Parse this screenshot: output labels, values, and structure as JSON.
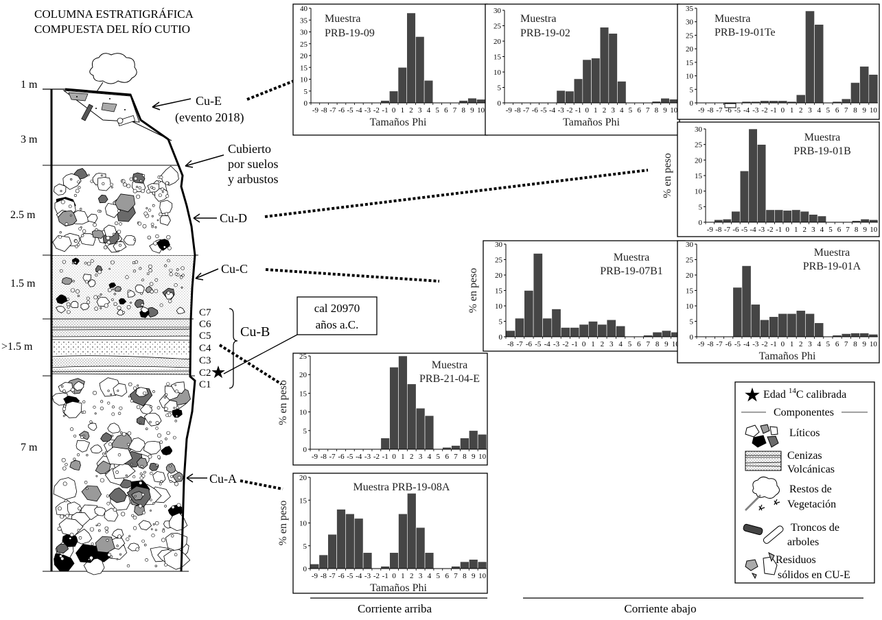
{
  "title_lines": [
    "COLUMNA ESTRATIGRÁFICA",
    "COMPUESTA DEL RÍO CUTIO"
  ],
  "thickness_labels": [
    "1 m",
    "3 m",
    "2.5 m",
    "1.5 m",
    ">1.5 m",
    "7 m"
  ],
  "unit_labels": {
    "cu_e": [
      "Cu-E",
      "(evento 2018)"
    ],
    "covered": [
      "Cubierto",
      "por suelos",
      "y arbustos"
    ],
    "cu_d": "Cu-D",
    "cu_c": "Cu-C",
    "cu_b": "Cu-B",
    "cu_a": "Cu-A",
    "c_layers": [
      "C7",
      "C6",
      "C5",
      "C4",
      "C3",
      "C2",
      "C1"
    ]
  },
  "date_box": [
    "cal 20970",
    "años a.C."
  ],
  "bottom_labels": {
    "upstream": "Corriente arriba",
    "downstream": "Corriente abajo"
  },
  "legend": {
    "star_prefix": "Edad ",
    "star_sup": "14",
    "star_suffix": "C calibrada",
    "components_title": "Componentes",
    "items": [
      [
        "Líticos"
      ],
      [
        "Cenizas",
        "Volcánicas"
      ],
      [
        "Restos de",
        "Vegetación"
      ],
      [
        "Troncos de",
        "arboles"
      ],
      [
        "Residuos",
        "sólidos en CU-E"
      ]
    ]
  },
  "colors": {
    "bar": "#454545",
    "axis": "#000000",
    "gray_clast": "#9a9a9a",
    "dark_clast": "#6a6a6a"
  },
  "chart_data": [
    {
      "type": "bar",
      "sample_label": [
        "Muestra",
        "PRB-19-09"
      ],
      "x": [
        -9,
        -8,
        -7,
        -6,
        -5,
        -4,
        -3,
        -2,
        -1,
        0,
        1,
        2,
        3,
        4,
        5,
        6,
        7,
        8,
        9,
        10
      ],
      "values": [
        0,
        0,
        0,
        0,
        0,
        0,
        0,
        0,
        1,
        5,
        15,
        38,
        28,
        9.5,
        0,
        0,
        0,
        1,
        2,
        1.5
      ],
      "ylim": [
        0,
        40
      ],
      "yticks": [
        0,
        5,
        10,
        15,
        20,
        25,
        30,
        35,
        40
      ],
      "xlabel": "Tamaños Phi",
      "ylabel": ""
    },
    {
      "type": "bar",
      "sample_label": [
        "Muestra",
        "PRB-19-02"
      ],
      "x": [
        -9,
        -8,
        -7,
        -6,
        -5,
        -4,
        -3,
        -2,
        -1,
        0,
        1,
        2,
        3,
        4,
        5,
        6,
        7,
        8,
        9,
        10
      ],
      "values": [
        0,
        0,
        0,
        0,
        0,
        0,
        4,
        3.8,
        7.8,
        14,
        14.5,
        24.5,
        22.5,
        7,
        0,
        0,
        0,
        0.5,
        1.5,
        1.2
      ],
      "ylim": [
        0,
        30
      ],
      "yticks": [
        0,
        5,
        10,
        15,
        20,
        25,
        30
      ],
      "xlabel": "Tamaños Phi",
      "ylabel": ""
    },
    {
      "type": "bar",
      "sample_label": [
        "Muestra",
        "PRB-19-01Te"
      ],
      "x": [
        -9,
        -8,
        -7,
        -6,
        -5,
        -4,
        -3,
        -2,
        -1,
        0,
        1,
        2,
        3,
        4,
        5,
        6,
        7,
        8,
        9,
        10
      ],
      "values": [
        0,
        0,
        0,
        0,
        0.2,
        0.5,
        0.5,
        0.8,
        0.8,
        0.8,
        0.5,
        3,
        34,
        29,
        0,
        0.5,
        1.5,
        7.5,
        13.5,
        10.5
      ],
      "ylim": [
        0,
        35
      ],
      "yticks": [
        0,
        5,
        10,
        15,
        20,
        25,
        30,
        35
      ],
      "xlabel": "",
      "ylabel": ""
    },
    {
      "type": "bar",
      "sample_label": [
        "Muestra",
        "PRB-19-01B"
      ],
      "x": [
        -9,
        -8,
        -7,
        -6,
        -5,
        -4,
        -3,
        -2,
        -1,
        0,
        1,
        2,
        3,
        4,
        5,
        6,
        7,
        8,
        9,
        10
      ],
      "values": [
        0,
        0.8,
        1,
        3.5,
        16.5,
        30,
        25,
        4,
        4,
        3.8,
        4,
        3.5,
        2.5,
        2,
        0,
        0,
        0,
        0.5,
        1,
        0.8
      ],
      "ylim": [
        0,
        30
      ],
      "yticks": [
        0,
        5,
        10,
        15,
        20,
        25,
        30
      ],
      "xlabel": "",
      "ylabel": "% en peso"
    },
    {
      "type": "bar",
      "sample_label": [
        "Muestra",
        "PRB-19-07B1"
      ],
      "x": [
        -8,
        -7,
        -6,
        -5,
        -4,
        -3,
        -2,
        -1,
        0,
        1,
        2,
        3,
        4,
        5,
        6,
        7,
        8,
        9,
        10
      ],
      "values": [
        2,
        6,
        15,
        27,
        6,
        9,
        3,
        3,
        4,
        5,
        4,
        5.5,
        3.5,
        0,
        0,
        0.5,
        1.5,
        2,
        1.5
      ],
      "ylim": [
        0,
        30
      ],
      "yticks": [
        0,
        5,
        10,
        15,
        20,
        25,
        30
      ],
      "xlabel": "",
      "ylabel": "% en peso"
    },
    {
      "type": "bar",
      "sample_label": [
        "Muestra",
        "PRB-19-01A"
      ],
      "x": [
        -9,
        -8,
        -7,
        -6,
        -5,
        -4,
        -3,
        -2,
        -1,
        0,
        1,
        2,
        3,
        4,
        5,
        6,
        7,
        8,
        9,
        10
      ],
      "values": [
        0,
        0,
        0,
        0,
        16,
        23,
        10.5,
        5.5,
        6.5,
        7.5,
        7.5,
        8.5,
        7.5,
        4.5,
        0,
        0.5,
        1,
        1.2,
        1.2,
        0.8
      ],
      "ylim": [
        0,
        30
      ],
      "yticks": [
        0,
        5,
        10,
        15,
        20,
        25,
        30
      ],
      "xlabel": "Tamaños Phi",
      "ylabel": ""
    },
    {
      "type": "bar",
      "sample_label": [
        "Muestra",
        "PRB-21-04-E"
      ],
      "x": [
        -9,
        -8,
        -7,
        -6,
        -5,
        -4,
        -3,
        -2,
        -1,
        0,
        1,
        2,
        3,
        4,
        5,
        6,
        7,
        8,
        9,
        10
      ],
      "values": [
        0,
        0,
        0,
        0,
        0,
        0,
        0,
        0,
        3,
        22,
        25,
        17.5,
        11,
        9,
        0,
        0.5,
        1,
        3,
        5,
        4
      ],
      "ylim": [
        0,
        25
      ],
      "yticks": [
        0,
        5,
        10,
        15,
        20,
        25
      ],
      "xlabel": "",
      "ylabel": "% en peso"
    },
    {
      "type": "bar",
      "sample_label": [
        "Muestra PRB-19-08A"
      ],
      "x": [
        -9,
        -8,
        -7,
        -6,
        -5,
        -4,
        -3,
        -2,
        -1,
        0,
        1,
        2,
        3,
        4,
        5,
        6,
        7,
        8,
        9,
        10
      ],
      "values": [
        1,
        3,
        7.5,
        13,
        12,
        11,
        3.5,
        0,
        0.5,
        3.5,
        12,
        16.5,
        9,
        3.5,
        0,
        0,
        0.5,
        1.5,
        2,
        1.5
      ],
      "ylim": [
        0,
        20
      ],
      "yticks": [
        0,
        5,
        10,
        15,
        20
      ],
      "xlabel": "Tamaños Phi",
      "ylabel": "% en peso"
    }
  ]
}
